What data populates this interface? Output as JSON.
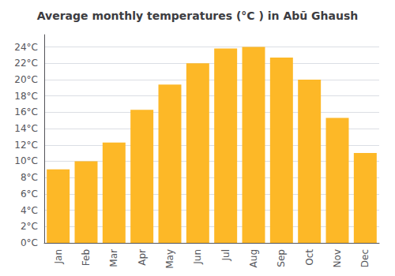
{
  "chart_data": {
    "type": "bar",
    "title": "Average monthly temperatures (°C ) in Abū Ghaush",
    "categories": [
      "Jan",
      "Feb",
      "Mar",
      "Apr",
      "May",
      "Jun",
      "Jul",
      "Aug",
      "Sep",
      "Oct",
      "Nov",
      "Dec"
    ],
    "values": [
      9.0,
      10.0,
      12.3,
      16.3,
      19.4,
      22.0,
      23.8,
      24.0,
      22.7,
      20.0,
      15.3,
      11.0
    ],
    "color": "#FDB827",
    "ylim": [
      0,
      25.5
    ],
    "yticks": [
      {
        "value": 0,
        "label": "0°C"
      },
      {
        "value": 2,
        "label": "2°C"
      },
      {
        "value": 4,
        "label": "4°C"
      },
      {
        "value": 6,
        "label": "6°C"
      },
      {
        "value": 8,
        "label": "8°C"
      },
      {
        "value": 10,
        "label": "10°C"
      },
      {
        "value": 12,
        "label": "12°C"
      },
      {
        "value": 14,
        "label": "14°C"
      },
      {
        "value": 16,
        "label": "16°C"
      },
      {
        "value": 18,
        "label": "18°C"
      },
      {
        "value": 20,
        "label": "20°C"
      },
      {
        "value": 22,
        "label": "22°C"
      },
      {
        "value": 24,
        "label": "24°C"
      }
    ],
    "grid": true
  }
}
